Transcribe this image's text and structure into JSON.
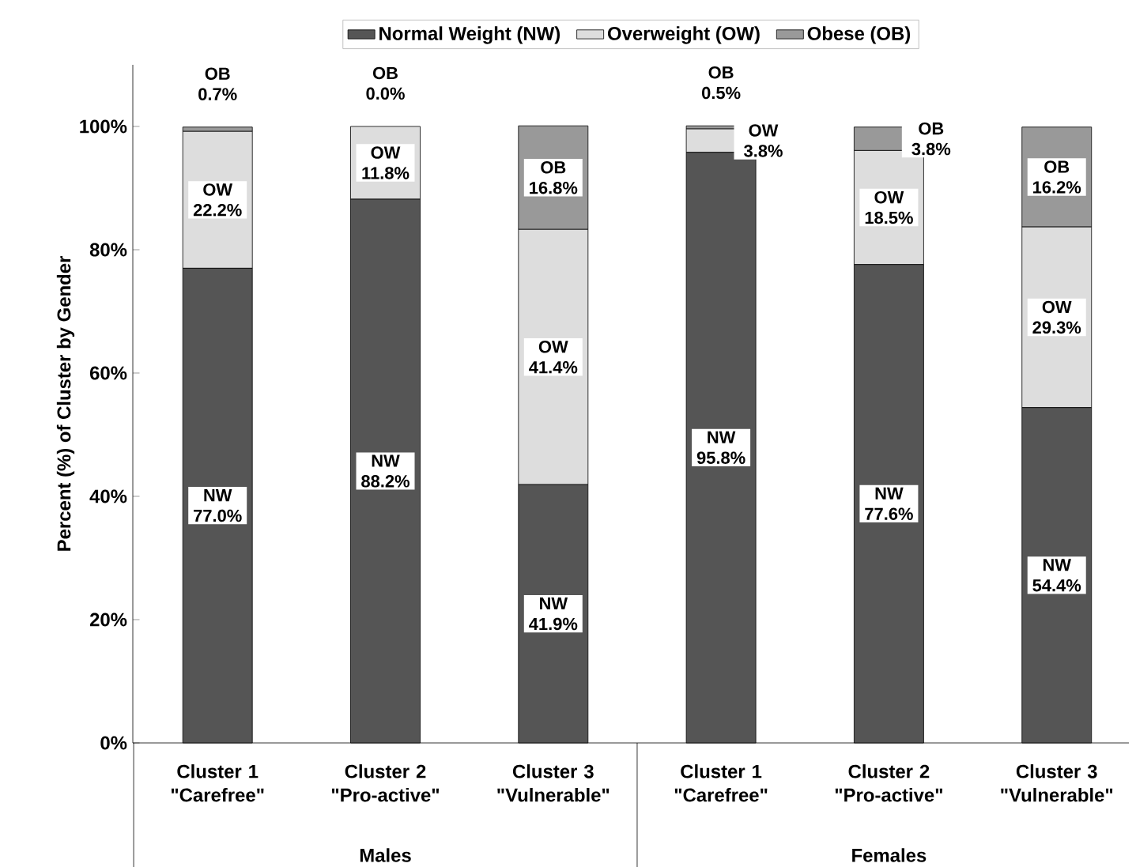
{
  "chart_data": {
    "type": "bar",
    "stacked": true,
    "ylabel": "Percent (%) of Cluster by Gender",
    "categories": [
      "Cluster 1 \"Carefree\"",
      "Cluster 2 \"Pro-active\"",
      "Cluster 3 \"Vulnerable\"",
      "Cluster 1 \"Carefree\"",
      "Cluster 2 \"Pro-active\"",
      "Cluster 3 \"Vulnerable\""
    ],
    "annotations": [
      "Males",
      "Females"
    ],
    "series": [
      {
        "name": "Normal Weight (NW)",
        "color": "#555555",
        "values": [
          77.0,
          88.2,
          41.9,
          95.8,
          77.6,
          54.4
        ],
        "value_labels": [
          "NW 77.0%",
          "NW 88.2%",
          "NW 41.9%",
          "NW 95.8%",
          "NW 77.6%",
          "NW 54.4%"
        ]
      },
      {
        "name": "Overweight (OW)",
        "color": "#dddddd",
        "values": [
          22.2,
          11.8,
          41.4,
          3.8,
          18.5,
          29.3
        ],
        "value_labels": [
          "OW 22.2%",
          "OW 11.8%",
          "OW 41.4%",
          "OW 3.8%",
          "OW 18.5%",
          "OW 29.3%"
        ]
      },
      {
        "name": "Obese (OB)",
        "color": "#999999",
        "values": [
          0.7,
          0.0,
          16.8,
          0.5,
          3.8,
          16.2
        ],
        "value_labels": [
          "OB 0.7%",
          "OB 0.0%",
          "OB 16.8%",
          "OB 0.5%",
          "OB 3.8%",
          "OB 16.2%"
        ]
      }
    ],
    "ylim": [
      0,
      110
    ],
    "yticks": [
      {
        "value": 0,
        "label": "0%"
      },
      {
        "value": 20,
        "label": "20%"
      },
      {
        "value": 40,
        "label": "40%"
      },
      {
        "value": 60,
        "label": "60%"
      },
      {
        "value": 80,
        "label": "80%"
      },
      {
        "value": 100,
        "label": "100%"
      }
    ],
    "grid": false,
    "legend": "top"
  }
}
